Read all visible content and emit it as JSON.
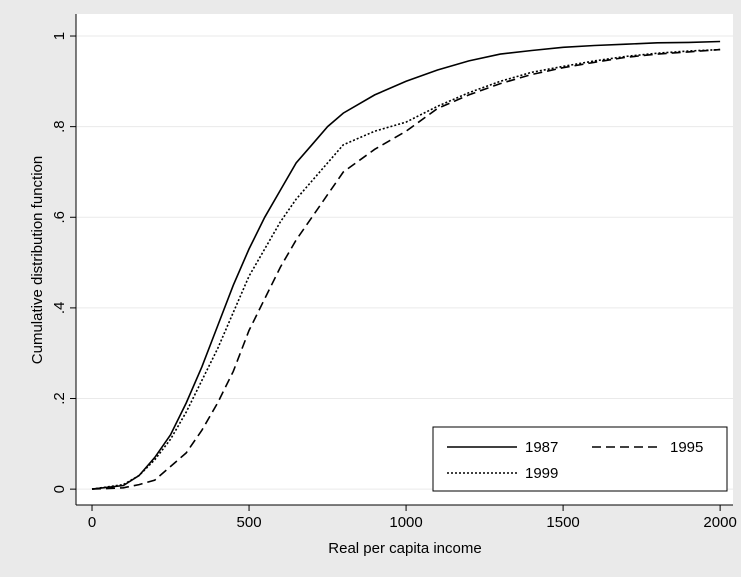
{
  "chart_data": {
    "type": "line",
    "x_label": "Real per capita income",
    "y_label": "Cumulative distribution function",
    "x": [
      0,
      100,
      150,
      200,
      250,
      300,
      350,
      400,
      450,
      500,
      550,
      600,
      650,
      700,
      750,
      800,
      900,
      1000,
      1100,
      1200,
      1300,
      1400,
      1500,
      1600,
      1700,
      1800,
      1900,
      2000
    ],
    "series": [
      {
        "name": "1987",
        "color": "#000000",
        "dash": "solid",
        "values": [
          0,
          0.008,
          0.03,
          0.07,
          0.12,
          0.19,
          0.27,
          0.36,
          0.45,
          0.53,
          0.6,
          0.66,
          0.72,
          0.76,
          0.8,
          0.83,
          0.87,
          0.9,
          0.925,
          0.945,
          0.96,
          0.968,
          0.975,
          0.979,
          0.982,
          0.985,
          0.986,
          0.988
        ]
      },
      {
        "name": "1995",
        "color": "#000000",
        "dash": "dashed",
        "values": [
          0,
          0.003,
          0.01,
          0.02,
          0.05,
          0.08,
          0.13,
          0.19,
          0.26,
          0.35,
          0.42,
          0.49,
          0.55,
          0.6,
          0.65,
          0.7,
          0.75,
          0.79,
          0.84,
          0.87,
          0.895,
          0.915,
          0.93,
          0.942,
          0.953,
          0.96,
          0.965,
          0.97
        ]
      },
      {
        "name": "1999",
        "color": "#000000",
        "dash": "dotted",
        "values": [
          0,
          0.01,
          0.03,
          0.065,
          0.11,
          0.17,
          0.24,
          0.31,
          0.39,
          0.47,
          0.53,
          0.59,
          0.64,
          0.68,
          0.72,
          0.76,
          0.79,
          0.81,
          0.845,
          0.875,
          0.9,
          0.92,
          0.933,
          0.945,
          0.955,
          0.962,
          0.967,
          0.97
        ]
      }
    ],
    "xlim": [
      -51,
      2041
    ],
    "ylim": [
      -0.035,
      1.0486
    ],
    "xticks": [
      0,
      500,
      1000,
      1500,
      2000
    ],
    "yticks": [
      0,
      {
        "value": 0.2,
        "label": ".2"
      },
      {
        "value": 0.4,
        "label": ".4"
      },
      {
        "value": 0.6,
        "label": ".6"
      },
      {
        "value": 0.8,
        "label": ".8"
      },
      1
    ],
    "grid": true,
    "legend_position": "bottom-right"
  }
}
